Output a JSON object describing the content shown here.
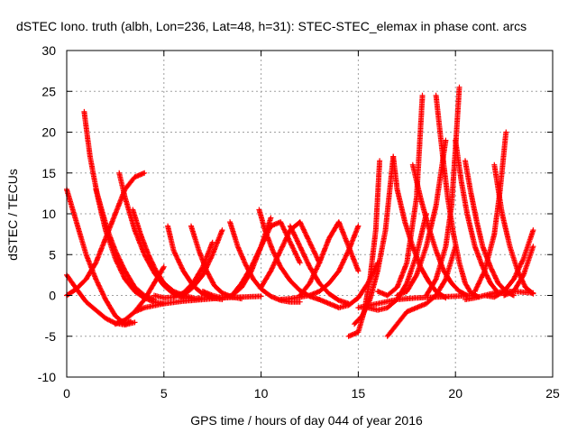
{
  "chart_data": {
    "type": "scatter",
    "title": "dSTEC Iono. truth (albh, Lon=236, Lat=48, h=31): STEC-STEC_elemax in phase cont. arcs",
    "xlabel": "GPS time / hours of day 044 of year 2016",
    "ylabel": "dSTEC  / TECUs",
    "xlim": [
      0,
      25
    ],
    "ylim": [
      -10,
      30
    ],
    "x_ticks": [
      0,
      5,
      10,
      15,
      20,
      25
    ],
    "y_ticks": [
      -10,
      -5,
      0,
      5,
      10,
      15,
      20,
      25,
      30
    ],
    "grid": true,
    "marker": "+",
    "color": "#ff0000",
    "series": [
      {
        "x": [
          0.0,
          0.5,
          1.0,
          1.5,
          2.0,
          2.5,
          3.0,
          3.3
        ],
        "y": [
          13,
          9,
          5,
          2,
          -0.5,
          -2.5,
          -3.5,
          -3.2
        ]
      },
      {
        "x": [
          0.0,
          0.5,
          1.0,
          1.5,
          2.0,
          2.5,
          3.0,
          3.5
        ],
        "y": [
          2.5,
          0.8,
          -0.8,
          -1.8,
          -2.8,
          -3.4,
          -3.6,
          -3.3
        ]
      },
      {
        "x": [
          0.0,
          0.5,
          1.0,
          1.5,
          2.0,
          2.5,
          3.0,
          3.5,
          4.0
        ],
        "y": [
          0.0,
          0.8,
          2.0,
          4.0,
          7.0,
          10.0,
          13.0,
          14.5,
          15.0
        ]
      },
      {
        "x": [
          0.9,
          1.2,
          1.6,
          2.0,
          2.5,
          3.0,
          3.5,
          4.0,
          4.5,
          5.0
        ],
        "y": [
          22.5,
          17.0,
          12.0,
          8.0,
          4.5,
          2.0,
          0.5,
          -0.3,
          -0.8,
          -1.0
        ]
      },
      {
        "x": [
          1.5,
          1.8,
          2.1,
          2.5,
          3.0,
          3.5,
          4.0,
          4.5
        ],
        "y": [
          13,
          10.5,
          8.0,
          5.5,
          3.0,
          1.0,
          0.0,
          -0.5
        ]
      },
      {
        "x": [
          2.7,
          3.0,
          3.5,
          4.0,
          4.5,
          5.0,
          5.5,
          6.0,
          6.5,
          7.0
        ],
        "y": [
          15,
          12.0,
          8.0,
          5.0,
          2.8,
          1.2,
          0.2,
          -0.3,
          -0.4,
          -0.3
        ]
      },
      {
        "x": [
          3.4,
          3.8,
          4.2,
          4.6,
          5.0,
          5.5,
          6.0,
          6.5
        ],
        "y": [
          10.5,
          7.5,
          5.0,
          3.0,
          1.5,
          0.5,
          0.0,
          -0.3
        ]
      },
      {
        "x": [
          2.5,
          3.0,
          3.5,
          4.0,
          4.5,
          5.0
        ],
        "y": [
          -3.5,
          -3.0,
          -2.0,
          -0.5,
          1.5,
          3.5
        ]
      },
      {
        "x": [
          3.5,
          4.0,
          5.0,
          6.0,
          7.0,
          8.0,
          9.0,
          10.0
        ],
        "y": [
          -2.0,
          -1.5,
          -1.0,
          -0.7,
          -0.5,
          -0.3,
          -0.2,
          -0.1
        ]
      },
      {
        "x": [
          5.2,
          5.5,
          6.0,
          6.5,
          7.0,
          7.5,
          8.0
        ],
        "y": [
          8.5,
          5.5,
          3.0,
          1.2,
          0.2,
          -0.3,
          -0.5
        ]
      },
      {
        "x": [
          4.5,
          5.0,
          5.5,
          6.0,
          6.5,
          7.0,
          7.5
        ],
        "y": [
          0.0,
          -0.3,
          -0.2,
          0.3,
          1.5,
          3.5,
          6.5
        ]
      },
      {
        "x": [
          6.4,
          6.8,
          7.2,
          7.6,
          8.0,
          8.5,
          9.0
        ],
        "y": [
          8.5,
          5.5,
          3.0,
          1.2,
          0.3,
          -0.2,
          -0.4
        ]
      },
      {
        "x": [
          6.0,
          6.5,
          7.0,
          7.5,
          8.0
        ],
        "y": [
          0.0,
          1.0,
          2.5,
          5.0,
          8.0
        ]
      },
      {
        "x": [
          7.0,
          7.5,
          8.0,
          8.5,
          9.0,
          9.5,
          10.0,
          10.5
        ],
        "y": [
          0.5,
          0.0,
          -0.3,
          0.0,
          1.0,
          3.0,
          6.0,
          9.5
        ]
      },
      {
        "x": [
          8.4,
          8.8,
          9.2,
          9.6,
          10.0,
          10.5,
          11.0,
          11.5,
          12.0
        ],
        "y": [
          9.0,
          6.0,
          3.8,
          2.0,
          0.8,
          -0.1,
          -0.6,
          -0.8,
          -0.8
        ]
      },
      {
        "x": [
          9.9,
          10.2,
          10.6,
          11.0,
          11.5,
          12.0,
          12.5,
          13.0
        ],
        "y": [
          10.5,
          8.0,
          5.5,
          3.5,
          1.8,
          0.6,
          -0.1,
          -0.5
        ]
      },
      {
        "x": [
          8.5,
          9.0,
          9.5,
          10.0,
          10.5,
          11.0,
          11.5,
          12.0
        ],
        "y": [
          0.0,
          1.5,
          3.5,
          6.0,
          8.5,
          9.0,
          6.5,
          4.0
        ]
      },
      {
        "x": [
          10.0,
          10.5,
          11.0,
          11.5,
          12.0,
          12.5,
          13.0
        ],
        "y": [
          1.0,
          3.0,
          5.5,
          8.0,
          9.0,
          6.5,
          4.0
        ]
      },
      {
        "x": [
          11.5,
          12.0,
          12.5,
          13.0,
          13.5,
          14.0,
          14.5
        ],
        "y": [
          8.5,
          6.0,
          3.5,
          1.5,
          0.2,
          -0.6,
          -1.0
        ]
      },
      {
        "x": [
          12.0,
          12.5,
          13.0,
          13.5,
          14.0,
          14.5,
          15.0
        ],
        "y": [
          0.0,
          1.5,
          4.0,
          7.0,
          9.0,
          6.0,
          3.0
        ]
      },
      {
        "x": [
          11.0,
          11.5,
          12.0,
          12.5,
          13.0,
          13.5,
          14.0,
          14.5,
          15.0
        ],
        "y": [
          -0.5,
          -0.4,
          -0.2,
          0.0,
          0.5,
          1.5,
          3.0,
          5.5,
          8.5
        ]
      },
      {
        "x": [
          13.0,
          13.5,
          14.0,
          14.5,
          15.0,
          15.5,
          16.0
        ],
        "y": [
          -0.5,
          -1.0,
          -1.5,
          -1.2,
          -0.3,
          1.5,
          4.0
        ]
      },
      {
        "x": [
          14.5,
          15.0,
          15.3,
          15.6,
          15.9,
          16.1
        ],
        "y": [
          -5.0,
          -4.5,
          -2.0,
          2.0,
          8.0,
          16.5
        ]
      },
      {
        "x": [
          14.8,
          15.2,
          15.6,
          16.0,
          16.4,
          16.8
        ],
        "y": [
          -3.5,
          -2.5,
          -0.5,
          3.0,
          8.0,
          17.0
        ]
      },
      {
        "x": [
          15.5,
          16.0,
          16.5,
          17.0,
          17.5,
          18.0,
          18.5
        ],
        "y": [
          -1.5,
          -1.8,
          -1.5,
          -0.5,
          1.5,
          5.0,
          10.0
        ]
      },
      {
        "x": [
          16.0,
          16.5,
          17.0,
          17.5,
          18.0,
          18.3
        ],
        "y": [
          0.5,
          0.0,
          1.0,
          4.0,
          12.0,
          24.5
        ]
      },
      {
        "x": [
          16.5,
          17.0,
          17.5,
          18.0,
          18.5,
          19.0,
          19.5,
          20.0
        ],
        "y": [
          -5.0,
          -3.5,
          -2.0,
          -1.5,
          -1.0,
          0.0,
          2.0,
          6.0
        ]
      },
      {
        "x": [
          16.8,
          17.0,
          17.4,
          17.8,
          18.2,
          18.6,
          19.0,
          19.5
        ],
        "y": [
          17.0,
          13.0,
          9.0,
          6.0,
          3.5,
          1.8,
          0.5,
          -0.3
        ]
      },
      {
        "x": [
          17.0,
          17.5,
          18.0,
          18.5,
          19.0,
          19.5
        ],
        "y": [
          0.0,
          0.5,
          2.5,
          6.0,
          11.0,
          19.0
        ]
      },
      {
        "x": [
          17.8,
          18.2,
          18.6,
          19.0,
          19.4,
          19.8,
          20.2,
          20.6
        ],
        "y": [
          16.0,
          12.0,
          8.5,
          5.5,
          3.0,
          1.5,
          0.5,
          0.0
        ]
      },
      {
        "x": [
          18.5,
          19.0,
          19.5,
          19.8,
          20.0,
          20.2
        ],
        "y": [
          0.0,
          2.0,
          6.0,
          11.0,
          18.0,
          25.5
        ]
      },
      {
        "x": [
          19.0,
          19.3,
          19.6,
          19.9,
          20.2,
          20.5,
          20.8,
          21.2
        ],
        "y": [
          24.5,
          18.0,
          12.0,
          7.5,
          4.0,
          1.5,
          0.3,
          -0.2
        ]
      },
      {
        "x": [
          20.0,
          20.3,
          20.6,
          21.0,
          21.4,
          21.8,
          22.2
        ],
        "y": [
          19.0,
          14.0,
          10.0,
          6.0,
          3.5,
          1.5,
          0.3
        ]
      },
      {
        "x": [
          20.5,
          20.8,
          21.1,
          21.4,
          21.8,
          22.2,
          22.6,
          23.0
        ],
        "y": [
          16.5,
          12.5,
          9.0,
          6.0,
          3.5,
          1.5,
          0.5,
          0.0
        ]
      },
      {
        "x": [
          21.0,
          21.5,
          22.0,
          22.3,
          22.6
        ],
        "y": [
          0.5,
          3.0,
          7.5,
          13.0,
          20.0
        ]
      },
      {
        "x": [
          21.5,
          22.0,
          22.5,
          23.0,
          23.5,
          24.0
        ],
        "y": [
          0.0,
          -0.2,
          0.5,
          2.0,
          4.5,
          8.0
        ]
      },
      {
        "x": [
          22.0,
          22.4,
          22.8,
          23.2,
          23.6,
          24.0
        ],
        "y": [
          16.0,
          10.0,
          6.0,
          3.0,
          1.0,
          0.2
        ]
      },
      {
        "x": [
          22.5,
          23.0,
          23.5,
          24.0
        ],
        "y": [
          0.0,
          0.5,
          2.5,
          6.0
        ]
      },
      {
        "x": [
          20.5,
          21.0,
          21.5,
          22.0,
          22.5,
          23.0,
          23.5,
          24.0
        ],
        "y": [
          -0.5,
          -0.3,
          0.0,
          0.3,
          0.5,
          0.5,
          0.4,
          0.3
        ]
      },
      {
        "x": [
          15.0,
          16.0,
          17.0,
          18.0,
          19.0,
          20.0,
          21.0
        ],
        "y": [
          -1.5,
          -1.0,
          -0.5,
          -0.3,
          -0.2,
          -0.1,
          0.0
        ]
      }
    ]
  }
}
